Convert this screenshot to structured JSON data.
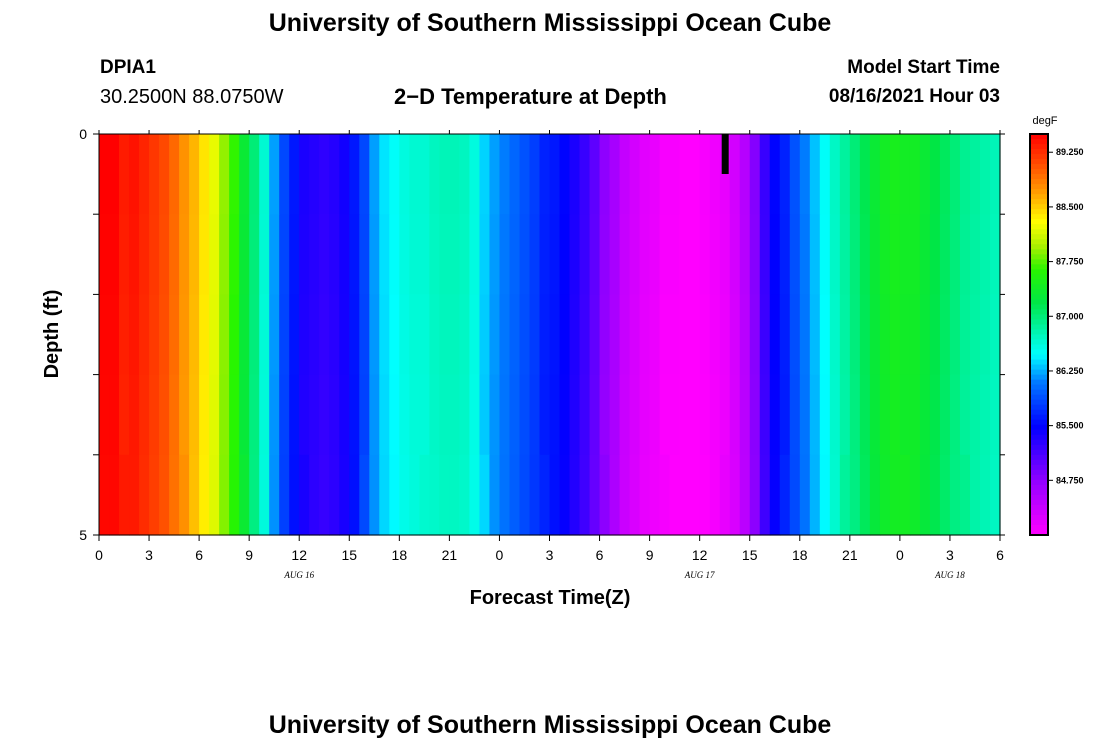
{
  "header": {
    "title": "University of Southern Mississippi Ocean Cube",
    "footer_title": "University of Southern Mississippi Ocean Cube",
    "station": "DPIA1",
    "coords": "30.2500N  88.0750W",
    "subtitle": "2−D Temperature at Depth",
    "model_start_label": "Model Start Time",
    "model_start_value": "08/16/2021 Hour 03"
  },
  "chart_data": {
    "type": "heatmap",
    "title": "2−D Temperature at Depth",
    "xlabel": "Forecast Time(Z)",
    "ylabel": "Depth (ft)",
    "x_hours": [
      0,
      1,
      2,
      3,
      4,
      5,
      6,
      7,
      8,
      9,
      10,
      11,
      12,
      13,
      14,
      15,
      16,
      17,
      18,
      19,
      20,
      21,
      22,
      23,
      24,
      25,
      26,
      27,
      28,
      29,
      30,
      31,
      32,
      33,
      34,
      35,
      36,
      37,
      38,
      39,
      40,
      41,
      42,
      43,
      44,
      45,
      46,
      47,
      48,
      49,
      50,
      51,
      52,
      53,
      54
    ],
    "x_tick_labels": [
      "0",
      "3",
      "6",
      "9",
      "12",
      "15",
      "18",
      "21",
      "0",
      "3",
      "6",
      "9",
      "12",
      "15",
      "18",
      "21",
      "0",
      "3",
      "6"
    ],
    "date_labels": [
      {
        "text": "AUG  16",
        "hour": 12
      },
      {
        "text": "AUG  17",
        "hour": 36
      },
      {
        "text": "AUG  18",
        "hour": 51
      }
    ],
    "y_tick_labels": [
      "0",
      "5"
    ],
    "ylim": [
      0,
      5
    ],
    "depth_levels": [
      0,
      1,
      2,
      3,
      4,
      5
    ],
    "temps_degF": [
      89.5,
      89.5,
      89.4,
      89.4,
      89.3,
      89.2,
      89.1,
      88.95,
      88.8,
      88.6,
      88.4,
      88.2,
      87.9,
      87.65,
      87.35,
      87.0,
      86.65,
      86.2,
      85.85,
      85.6,
      85.4,
      85.3,
      85.25,
      85.3,
      85.4,
      85.6,
      85.9,
      86.2,
      86.4,
      86.5,
      86.6,
      86.65,
      86.7,
      86.72,
      86.75,
      86.75,
      86.72,
      86.6,
      86.4,
      86.2,
      86.1,
      86.0,
      85.9,
      85.8,
      85.7,
      85.6,
      85.5,
      85.35,
      85.2,
      85.0,
      84.8,
      84.6,
      84.4,
      84.3,
      84.2,
      84.15,
      84.1,
      84.05,
      84.0,
      84.0,
      84.05,
      84.1,
      84.2,
      84.3,
      84.5,
      84.8,
      85.2,
      85.5,
      85.7,
      85.9,
      86.1,
      86.3,
      86.5,
      86.7,
      86.9,
      87.0,
      87.15,
      87.3,
      87.4,
      87.45,
      87.45,
      87.4,
      87.3,
      87.2,
      87.1,
      87.0,
      86.95,
      86.85,
      86.8,
      86.75
    ],
    "temps_note_unit": "degF",
    "colorbar": {
      "unit": "degF",
      "min": 84.0,
      "max": 89.5,
      "tick_labels": [
        "89.250",
        "88.500",
        "87.750",
        "87.000",
        "86.250",
        "85.500",
        "84.750"
      ],
      "tick_values": [
        89.25,
        88.5,
        87.75,
        87.0,
        86.25,
        85.5,
        84.75
      ]
    },
    "marker_hour": 37.5,
    "grid": false
  }
}
